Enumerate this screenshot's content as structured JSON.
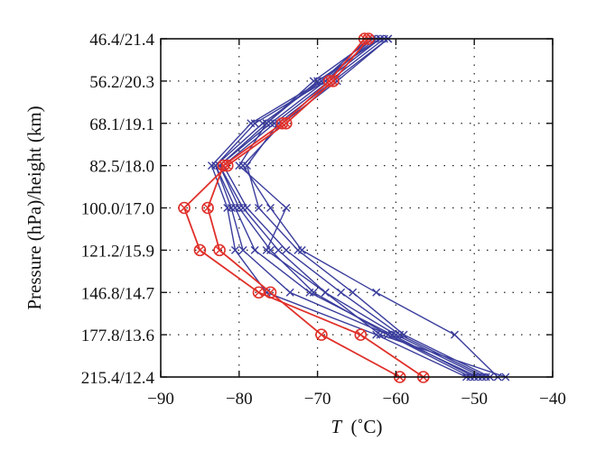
{
  "chart_data": {
    "type": "line",
    "title": "",
    "xlabel_var": "T",
    "xlabel_unit": "(˚C)",
    "ylabel": "Pressure (hPa)/height (km)",
    "xlim": [
      -90,
      -40
    ],
    "x_ticks": [
      -90,
      -80,
      -70,
      -60,
      -50,
      -40
    ],
    "x_tick_labels": [
      "−90",
      "−80",
      "−70",
      "−60",
      "−50",
      "−40"
    ],
    "y_levels": [
      "46.4/21.4",
      "56.2/20.3",
      "68.1/19.1",
      "82.5/18.0",
      "100.0/17.0",
      "121.2/15.9",
      "146.8/14.7",
      "177.8/13.6",
      "215.4/12.4"
    ],
    "grid": true,
    "colors": {
      "blue_series": "#3a3d9c",
      "red_series": "#e0302a",
      "grid": "#222222"
    },
    "series": [
      {
        "group": "blue",
        "marker": "x",
        "values": [
          -63.5,
          -69.5,
          -78.5,
          -83.5,
          -81.5,
          -80.5,
          -76.5,
          -62.5,
          -51.0
        ]
      },
      {
        "group": "blue",
        "marker": "x",
        "values": [
          -63.0,
          -69.0,
          -78.0,
          -83.0,
          -81.0,
          -79.5,
          -73.5,
          -61.0,
          -50.5
        ]
      },
      {
        "group": "blue",
        "marker": "x",
        "values": [
          -62.5,
          -69.5,
          -77.0,
          -83.0,
          -80.5,
          -78.0,
          -71.0,
          -60.5,
          -50.0
        ]
      },
      {
        "group": "blue",
        "marker": "x",
        "values": [
          -62.0,
          -70.0,
          -76.5,
          -82.5,
          -80.0,
          -76.0,
          -70.5,
          -61.0,
          -49.5
        ]
      },
      {
        "group": "blue",
        "marker": "x",
        "values": [
          -62.0,
          -69.0,
          -76.0,
          -82.5,
          -79.5,
          -75.0,
          -69.0,
          -60.0,
          -49.0
        ]
      },
      {
        "group": "blue",
        "marker": "x",
        "values": [
          -61.5,
          -68.5,
          -75.5,
          -82.0,
          -79.0,
          -74.0,
          -67.0,
          -59.5,
          -48.5
        ]
      },
      {
        "group": "blue",
        "marker": "x",
        "values": [
          -61.0,
          -68.0,
          -75.0,
          -79.0,
          -77.5,
          -72.5,
          -65.5,
          -59.0,
          -48.0
        ]
      },
      {
        "group": "blue",
        "marker": "x",
        "values": [
          -61.0,
          -67.5,
          -74.5,
          -79.5,
          -76.0,
          -72.0,
          -62.5,
          -52.5,
          -47.0
        ]
      },
      {
        "group": "blue",
        "marker": "x",
        "values": [
          -63.0,
          -70.5,
          -76.5,
          -80.0,
          -74.0,
          -76.5,
          -69.0,
          -62.0,
          -46.0
        ]
      },
      {
        "group": "red",
        "marker": "circle-x",
        "values": [
          -63.5,
          -68.0,
          -74.0,
          -81.5,
          -87.0,
          -85.0,
          -77.5,
          -64.5,
          -56.5
        ]
      },
      {
        "group": "red",
        "marker": "circle-x",
        "values": [
          -64.0,
          -68.5,
          -74.5,
          -82.0,
          -84.0,
          -82.5,
          -76.0,
          -69.5,
          -59.5
        ]
      }
    ]
  }
}
